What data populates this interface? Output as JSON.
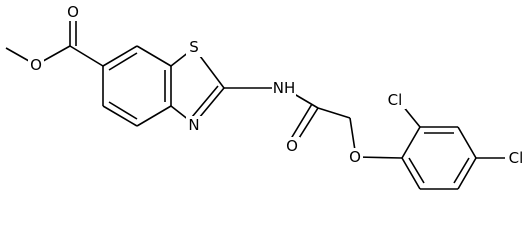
{
  "atoms": [
    {
      "label": "O"
    },
    {
      "label": "O"
    },
    {
      "label": "S"
    },
    {
      "label": "N"
    },
    {
      "label": "NH"
    },
    {
      "label": "O"
    },
    {
      "label": "O"
    },
    {
      "label": "Cl"
    },
    {
      "label": "Cl"
    }
  ]
}
